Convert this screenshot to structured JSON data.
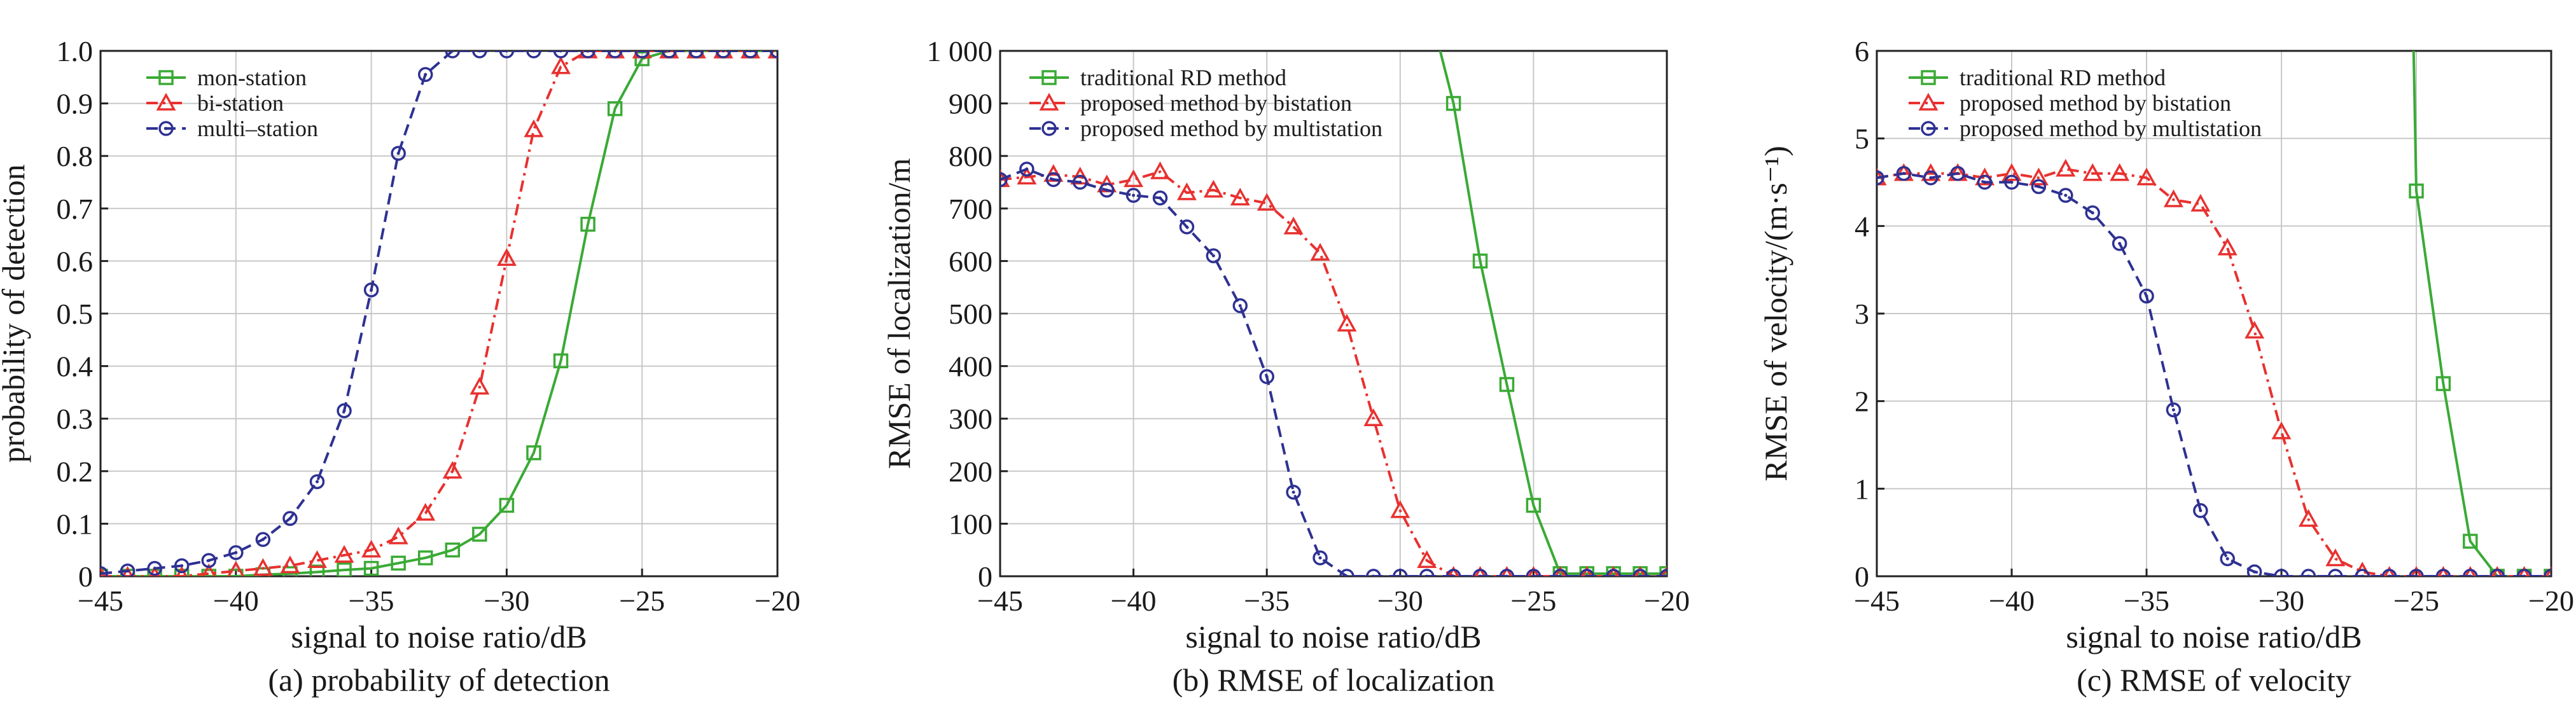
{
  "chart_data": [
    {
      "type": "line",
      "title": "",
      "caption": "(a) probability of detection",
      "xlabel": "signal to noise ratio/dB",
      "ylabel": "probability of detection",
      "xlim": [
        -45,
        -20
      ],
      "ylim": [
        0,
        1.0
      ],
      "xticks": [
        "-45",
        "-40",
        "-35",
        "-30",
        "-25",
        "-20"
      ],
      "yticks": [
        "0",
        "0.1",
        "0.2",
        "0.3",
        "0.4",
        "0.5",
        "0.6",
        "0.7",
        "0.8",
        "0.9",
        "1.0"
      ],
      "grid": true,
      "legend_position": "top-left",
      "x": [
        -45,
        -44,
        -43,
        -42,
        -41,
        -40,
        -39,
        -38,
        -37,
        -36,
        -35,
        -34,
        -33,
        -32,
        -31,
        -30,
        -29,
        -28,
        -27,
        -26,
        -25,
        -24,
        -23,
        -22,
        -21,
        -20
      ],
      "series": [
        {
          "name": "mon-station",
          "color": "#3aaa35",
          "dash": "solid",
          "marker": "square",
          "values": [
            0,
            0,
            0,
            0,
            0,
            0,
            0.003,
            0.005,
            0.008,
            0.012,
            0.015,
            0.025,
            0.035,
            0.05,
            0.08,
            0.135,
            0.235,
            0.41,
            0.67,
            0.89,
            0.985,
            1.0,
            1.0,
            1.0,
            1.0,
            1.0
          ]
        },
        {
          "name": "bi-station",
          "color": "#e8312f",
          "dash": "dashdot",
          "marker": "triangle",
          "values": [
            0,
            0,
            0,
            0,
            0.005,
            0.01,
            0.015,
            0.02,
            0.03,
            0.04,
            0.05,
            0.075,
            0.12,
            0.2,
            0.36,
            0.605,
            0.85,
            0.97,
            1.0,
            1.0,
            1.0,
            1.0,
            1.0,
            1.0,
            1.0,
            1.0
          ]
        },
        {
          "name": "multi–station",
          "color": "#2e3192",
          "dash": "dashed",
          "marker": "circle",
          "values": [
            0.005,
            0.01,
            0.015,
            0.02,
            0.03,
            0.045,
            0.07,
            0.11,
            0.18,
            0.315,
            0.545,
            0.805,
            0.955,
            1.0,
            1.0,
            1.0,
            1.0,
            1.0,
            1.0,
            1.0,
            1.0,
            1.0,
            1.0,
            1.0,
            1.0,
            1.0
          ]
        }
      ]
    },
    {
      "type": "line",
      "title": "",
      "caption": "(b) RMSE of localization",
      "xlabel": "signal to noise ratio/dB",
      "ylabel": "RMSE of localization/m",
      "xlim": [
        -45,
        -20
      ],
      "ylim": [
        0,
        1000
      ],
      "xticks": [
        "-45",
        "-40",
        "-35",
        "-30",
        "-25",
        "-20"
      ],
      "yticks": [
        "0",
        "100",
        "200",
        "300",
        "400",
        "500",
        "600",
        "700",
        "800",
        "900",
        "1 000"
      ],
      "grid": true,
      "legend_position": "top-left",
      "x": [
        -45,
        -44,
        -43,
        -42,
        -41,
        -40,
        -39,
        -38,
        -37,
        -36,
        -35,
        -34,
        -33,
        -32,
        -31,
        -30,
        -29,
        -28,
        -27,
        -26,
        -25,
        -24,
        -23,
        -22,
        -21,
        -20
      ],
      "series": [
        {
          "name": "traditional RD method",
          "color": "#3aaa35",
          "dash": "solid",
          "marker": "square",
          "values": [
            null,
            null,
            null,
            null,
            null,
            null,
            null,
            null,
            null,
            null,
            null,
            null,
            null,
            null,
            null,
            null,
            null,
            900,
            600,
            365,
            135,
            5,
            5,
            5,
            5,
            5
          ],
          "extend_to": [
            -28.5,
            1000
          ]
        },
        {
          "name": "proposed method by bistation",
          "color": "#e8312f",
          "dash": "dashdot",
          "marker": "triangle",
          "values": [
            755,
            760,
            765,
            760,
            745,
            755,
            770,
            730,
            735,
            720,
            710,
            665,
            615,
            480,
            300,
            125,
            30,
            0,
            0,
            0,
            0,
            0,
            0,
            0,
            0,
            0
          ]
        },
        {
          "name": "proposed method by multistation",
          "color": "#2e3192",
          "dash": "dashed",
          "marker": "circle",
          "values": [
            755,
            775,
            755,
            750,
            735,
            725,
            720,
            665,
            610,
            515,
            380,
            160,
            35,
            0,
            0,
            0,
            0,
            0,
            0,
            0,
            0,
            0,
            0,
            0,
            0,
            0
          ]
        }
      ]
    },
    {
      "type": "line",
      "title": "",
      "caption": "(c) RMSE of velocity",
      "xlabel": "signal to noise ratio/dB",
      "ylabel": "RMSE of velocity/(m·s⁻¹)",
      "xlim": [
        -45,
        -20
      ],
      "ylim": [
        0,
        6
      ],
      "xticks": [
        "-45",
        "-40",
        "-35",
        "-30",
        "-25",
        "-20"
      ],
      "yticks": [
        "0",
        "1",
        "2",
        "3",
        "4",
        "5",
        "6"
      ],
      "grid": true,
      "legend_position": "top-left",
      "x": [
        -45,
        -44,
        -43,
        -42,
        -41,
        -40,
        -39,
        -38,
        -37,
        -36,
        -35,
        -34,
        -33,
        -32,
        -31,
        -30,
        -29,
        -28,
        -27,
        -26,
        -25,
        -24,
        -23,
        -22,
        -21,
        -20
      ],
      "series": [
        {
          "name": "traditional RD method",
          "color": "#3aaa35",
          "dash": "solid",
          "marker": "square",
          "values": [
            null,
            null,
            null,
            null,
            null,
            null,
            null,
            null,
            null,
            null,
            null,
            null,
            null,
            null,
            null,
            null,
            null,
            null,
            null,
            null,
            4.4,
            2.2,
            0.4,
            0,
            0,
            0
          ],
          "extend_to": [
            -25.1,
            6
          ]
        },
        {
          "name": "proposed method by bistation",
          "color": "#e8312f",
          "dash": "dashdot",
          "marker": "triangle",
          "values": [
            4.55,
            4.6,
            4.6,
            4.6,
            4.55,
            4.6,
            4.55,
            4.65,
            4.6,
            4.6,
            4.55,
            4.3,
            4.25,
            3.75,
            2.8,
            1.65,
            0.65,
            0.2,
            0.05,
            0,
            0,
            0,
            0,
            0,
            0,
            0
          ]
        },
        {
          "name": "proposed method by multistation",
          "color": "#2e3192",
          "dash": "dashed",
          "marker": "circle",
          "values": [
            4.55,
            4.6,
            4.55,
            4.6,
            4.5,
            4.5,
            4.45,
            4.35,
            4.15,
            3.8,
            3.2,
            1.9,
            0.75,
            0.2,
            0.05,
            0,
            0,
            0,
            0,
            0,
            0,
            0,
            0,
            0,
            0,
            0
          ]
        }
      ]
    }
  ]
}
